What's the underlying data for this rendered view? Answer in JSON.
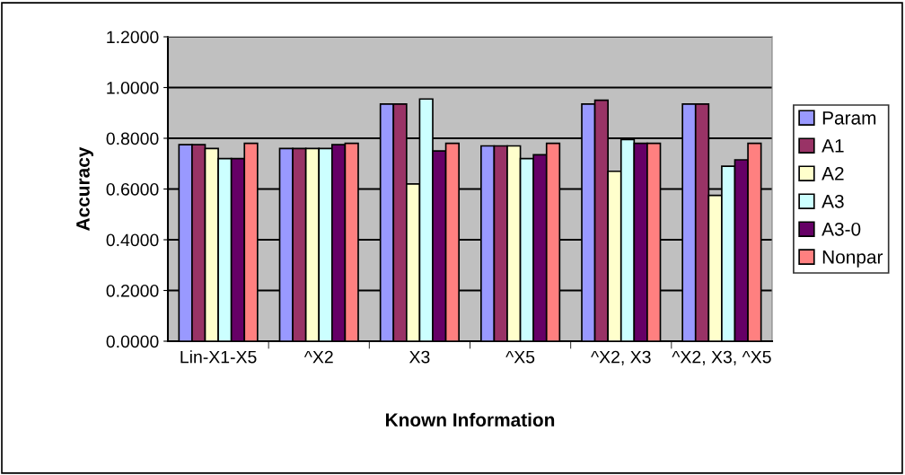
{
  "chart_data": {
    "type": "bar",
    "xlabel": "Known Information",
    "ylabel": "Accuracy",
    "categories": [
      "Lin-X1-X5",
      "^X2",
      "X3",
      "^X5",
      "^X2, X3",
      "^X2, X3, ^X5"
    ],
    "series": [
      {
        "name": "Param",
        "color": "#9999ff",
        "values": [
          0.775,
          0.76,
          0.935,
          0.77,
          0.935,
          0.935
        ]
      },
      {
        "name": "A1",
        "color": "#993366",
        "values": [
          0.775,
          0.76,
          0.935,
          0.77,
          0.95,
          0.935
        ]
      },
      {
        "name": "A2",
        "color": "#ffffcc",
        "values": [
          0.76,
          0.76,
          0.62,
          0.77,
          0.67,
          0.575
        ]
      },
      {
        "name": "A3",
        "color": "#ccffff",
        "values": [
          0.72,
          0.76,
          0.955,
          0.72,
          0.795,
          0.69
        ]
      },
      {
        "name": "A3-0",
        "color": "#660066",
        "values": [
          0.72,
          0.775,
          0.75,
          0.735,
          0.78,
          0.715
        ]
      },
      {
        "name": "Nonpar",
        "color": "#ff8080",
        "values": [
          0.78,
          0.78,
          0.78,
          0.78,
          0.78,
          0.78
        ]
      }
    ],
    "ylim": [
      0,
      1.2
    ],
    "yticks": [
      {
        "value": 0,
        "label": "0.0000"
      },
      {
        "value": 0.2,
        "label": "0.2000"
      },
      {
        "value": 0.4,
        "label": "0.4000"
      },
      {
        "value": 0.6,
        "label": "0.6000"
      },
      {
        "value": 0.8,
        "label": "0.8000"
      },
      {
        "value": 1.0,
        "label": "1.0000"
      },
      {
        "value": 1.2,
        "label": "1.2000"
      }
    ],
    "grid": "y",
    "legend": "right"
  }
}
